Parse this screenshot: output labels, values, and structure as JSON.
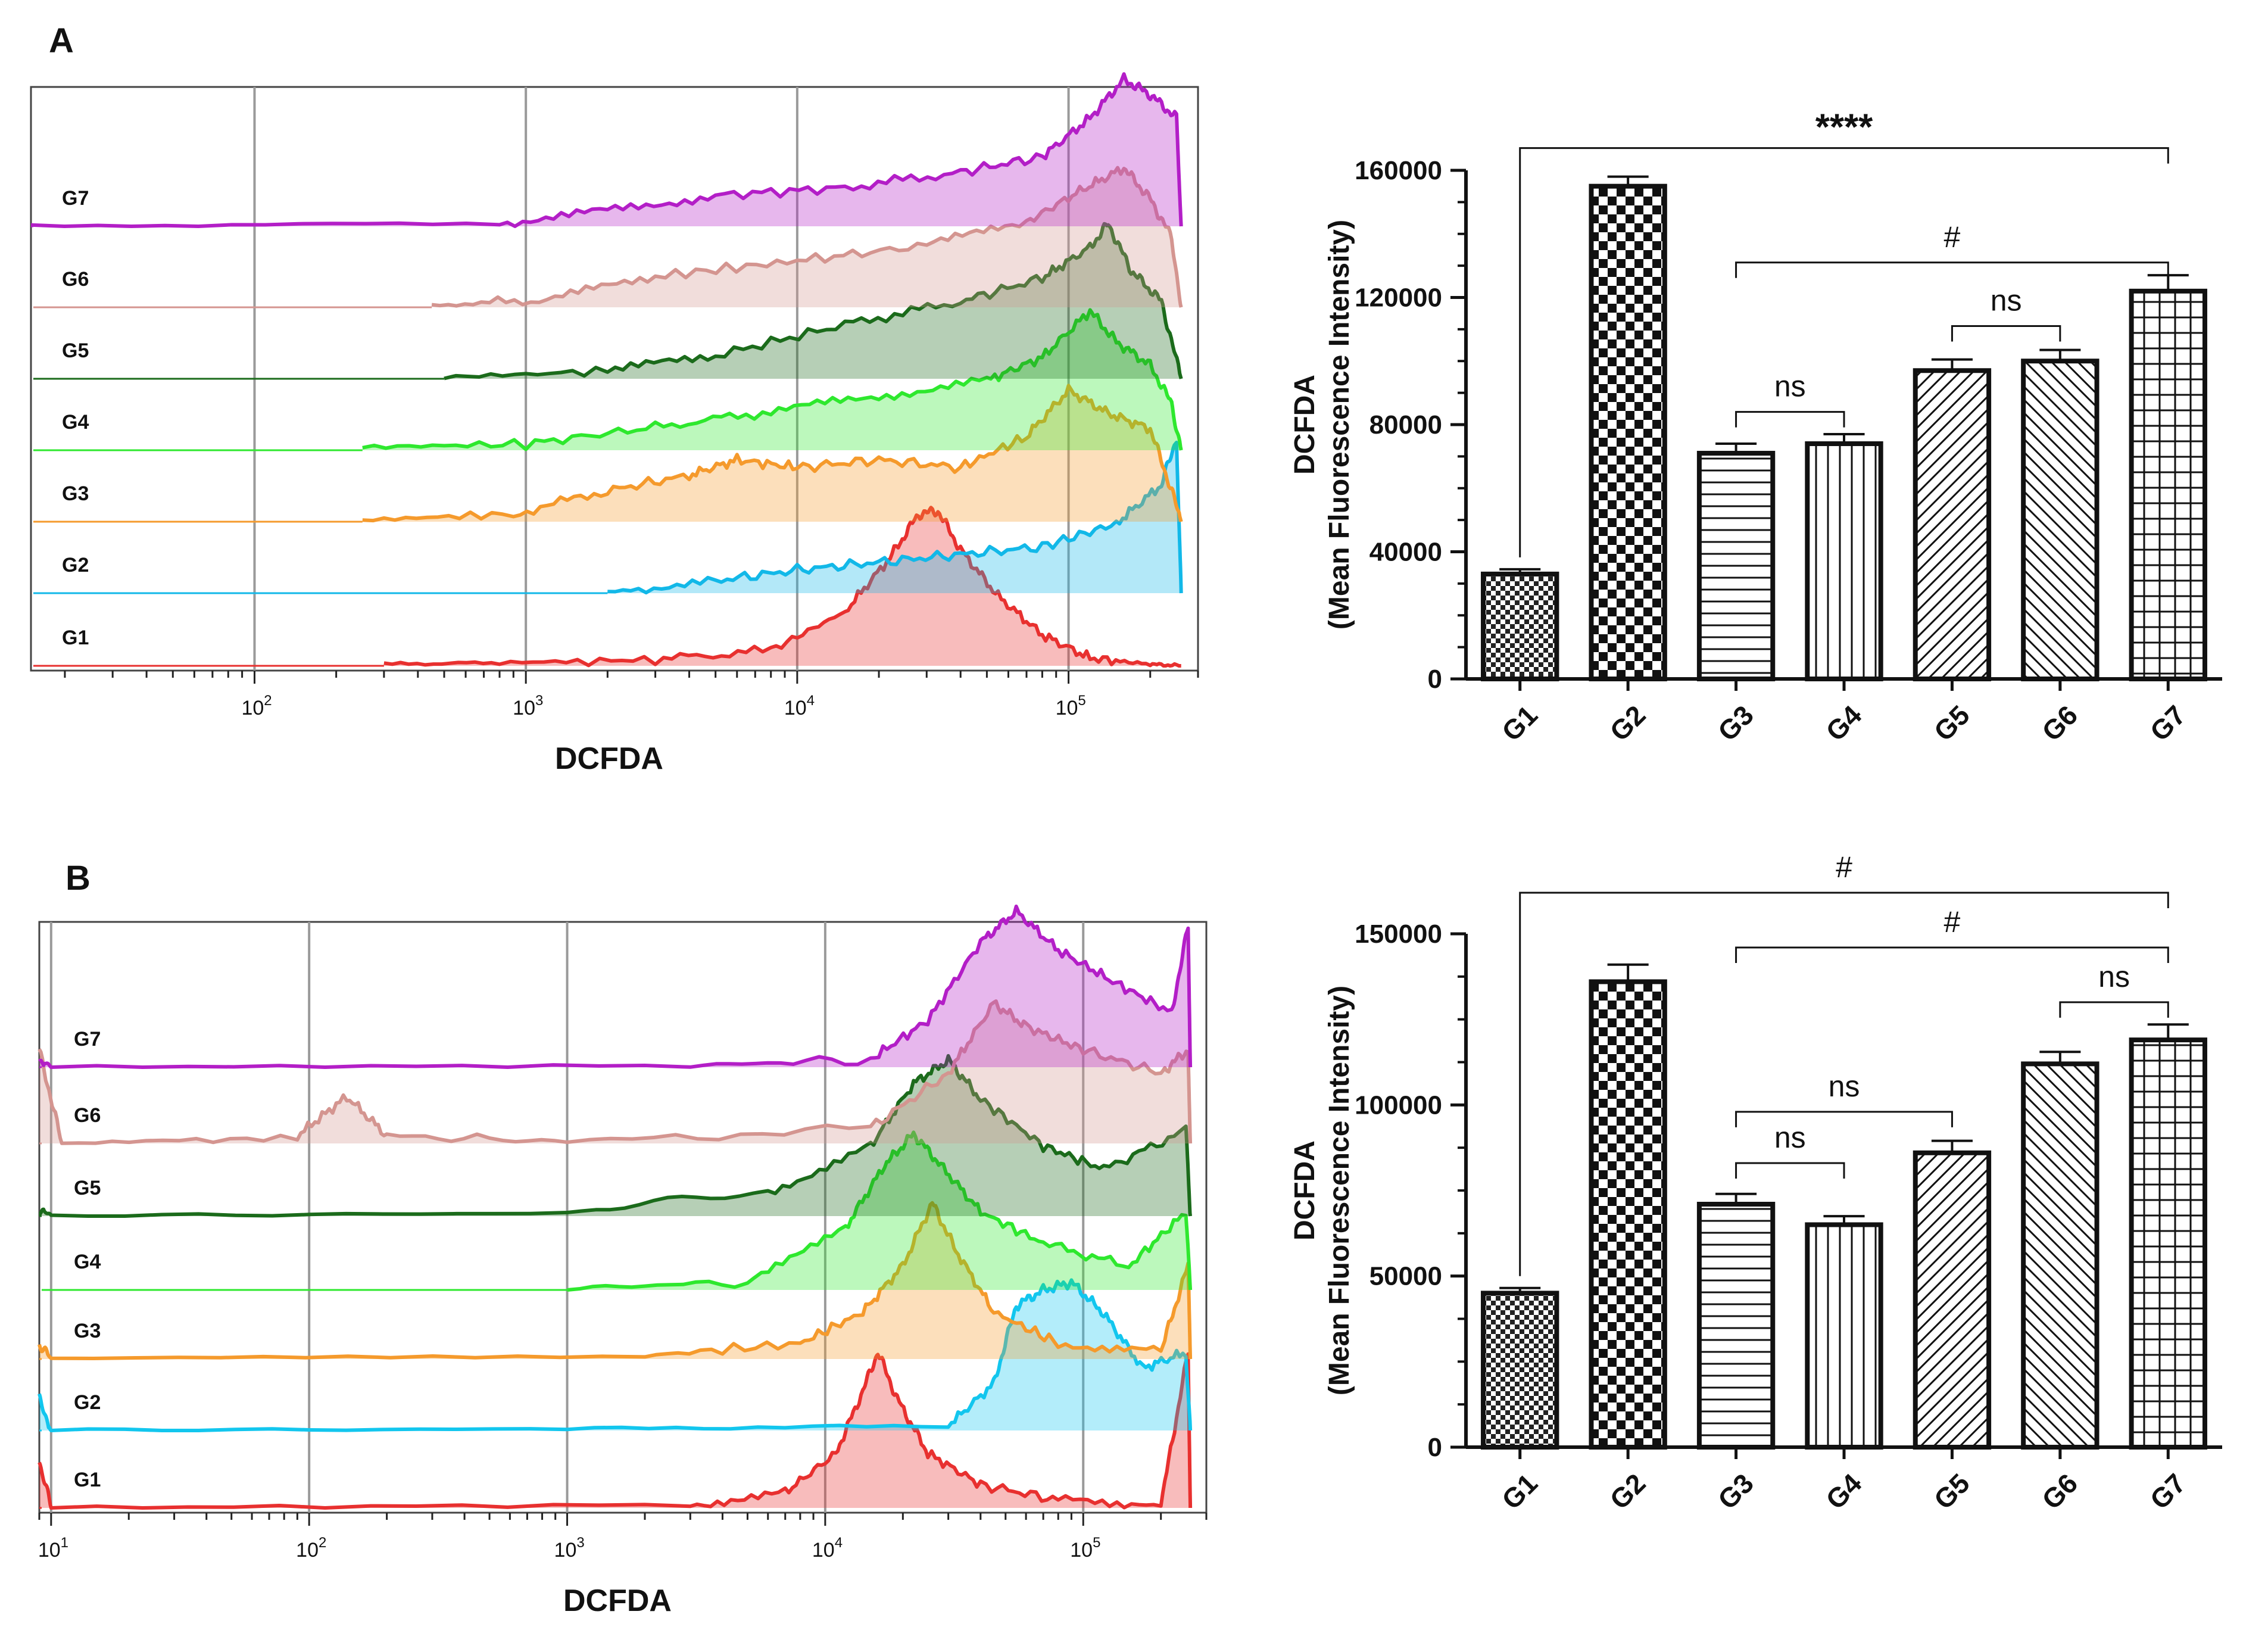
{
  "chart_data": [
    {
      "panel": "A",
      "type": "histogram-overlay",
      "xlabel": "DCFDA",
      "x_scale": "log",
      "x_ticks": [
        {
          "value": 100,
          "base": "10",
          "exp": "2"
        },
        {
          "value": 1000,
          "base": "10",
          "exp": "3"
        },
        {
          "value": 10000,
          "base": "10",
          "exp": "4"
        },
        {
          "value": 100000,
          "base": "10",
          "exp": "5"
        }
      ],
      "xlim": [
        15,
        300000
      ],
      "rows": [
        "G7",
        "G6",
        "G5",
        "G4",
        "G3",
        "G2",
        "G1"
      ],
      "colors": {
        "G1": "#e8302f",
        "G2": "#12b8e8",
        "G3": "#f59a2c",
        "G4": "#2ee82e",
        "G5": "#1b6b1b",
        "G6": "#d49590",
        "G7": "#b31ec7"
      },
      "series": [
        {
          "name": "G1",
          "profile": [
            [
              300,
              0.01
            ],
            [
              800,
              0.02
            ],
            [
              3000,
              0.04
            ],
            [
              8000,
              0.1
            ],
            [
              15000,
              0.35
            ],
            [
              22000,
              0.7
            ],
            [
              28000,
              0.98
            ],
            [
              33000,
              1.0
            ],
            [
              40000,
              0.75
            ],
            [
              55000,
              0.45
            ],
            [
              80000,
              0.2
            ],
            [
              120000,
              0.05
            ],
            [
              200000,
              0.01
            ],
            [
              260000,
              0.0
            ]
          ]
        },
        {
          "name": "G2",
          "profile": [
            [
              2000,
              0.01
            ],
            [
              5000,
              0.08
            ],
            [
              10000,
              0.15
            ],
            [
              20000,
              0.2
            ],
            [
              40000,
              0.25
            ],
            [
              80000,
              0.3
            ],
            [
              150000,
              0.45
            ],
            [
              220000,
              0.7
            ],
            [
              250000,
              1.0
            ],
            [
              260000,
              0.0
            ]
          ]
        },
        {
          "name": "G3",
          "profile": [
            [
              250,
              0.01
            ],
            [
              900,
              0.05
            ],
            [
              2000,
              0.2
            ],
            [
              4000,
              0.3
            ],
            [
              6000,
              0.4
            ],
            [
              10000,
              0.35
            ],
            [
              20000,
              0.4
            ],
            [
              40000,
              0.35
            ],
            [
              70000,
              0.55
            ],
            [
              100000,
              0.85
            ],
            [
              140000,
              0.7
            ],
            [
              200000,
              0.6
            ],
            [
              240000,
              0.2
            ],
            [
              260000,
              0.0
            ]
          ]
        },
        {
          "name": "G4",
          "profile": [
            [
              250,
              0.02
            ],
            [
              1000,
              0.04
            ],
            [
              3000,
              0.15
            ],
            [
              8000,
              0.25
            ],
            [
              20000,
              0.35
            ],
            [
              50000,
              0.45
            ],
            [
              80000,
              0.6
            ],
            [
              120000,
              0.9
            ],
            [
              150000,
              0.7
            ],
            [
              200000,
              0.55
            ],
            [
              240000,
              0.3
            ],
            [
              260000,
              0.0
            ]
          ]
        },
        {
          "name": "G5",
          "profile": [
            [
              500,
              0.01
            ],
            [
              2000,
              0.05
            ],
            [
              5000,
              0.15
            ],
            [
              15000,
              0.35
            ],
            [
              40000,
              0.5
            ],
            [
              80000,
              0.65
            ],
            [
              120000,
              0.85
            ],
            [
              140000,
              1.0
            ],
            [
              170000,
              0.7
            ],
            [
              220000,
              0.5
            ],
            [
              260000,
              0.0
            ]
          ]
        },
        {
          "name": "G6",
          "profile": [
            [
              450,
              0.01
            ],
            [
              1200,
              0.05
            ],
            [
              3000,
              0.2
            ],
            [
              10000,
              0.3
            ],
            [
              30000,
              0.4
            ],
            [
              70000,
              0.55
            ],
            [
              110000,
              0.75
            ],
            [
              160000,
              0.9
            ],
            [
              200000,
              0.7
            ],
            [
              240000,
              0.45
            ],
            [
              260000,
              0.0
            ]
          ]
        },
        {
          "name": "G7",
          "profile": [
            [
              15,
              0.0
            ],
            [
              800,
              0.02
            ],
            [
              2000,
              0.1
            ],
            [
              5000,
              0.2
            ],
            [
              15000,
              0.25
            ],
            [
              40000,
              0.35
            ],
            [
              80000,
              0.45
            ],
            [
              120000,
              0.7
            ],
            [
              160000,
              0.95
            ],
            [
              200000,
              0.85
            ],
            [
              250000,
              0.7
            ],
            [
              260000,
              0.0
            ]
          ]
        }
      ]
    },
    {
      "panel": "A",
      "type": "bar",
      "categories": [
        "G1",
        "G2",
        "G3",
        "G4",
        "G5",
        "G6",
        "G7"
      ],
      "values": [
        33000,
        155000,
        71000,
        74000,
        97000,
        100000,
        122000
      ],
      "errors": [
        1500,
        3000,
        3000,
        3000,
        3500,
        3500,
        5000
      ],
      "patterns": [
        "dense-checker",
        "checker",
        "horizontal",
        "vertical",
        "diag-right",
        "diag-left",
        "grid"
      ],
      "ylabel": [
        "DCFDA",
        "(Mean Fluorescence Intensity)"
      ],
      "ylim": [
        0,
        160000
      ],
      "ticks": [
        "0",
        "40000",
        "80000",
        "120000",
        "160000"
      ],
      "tick_values": [
        0,
        40000,
        80000,
        120000,
        160000
      ],
      "annotations": [
        {
          "label": "****",
          "from": "G1",
          "to": "G7",
          "level": 167000
        },
        {
          "label": "#",
          "from": "G3",
          "to": "G7",
          "level": 131000
        },
        {
          "label": "ns",
          "from": "G3",
          "to": "G4",
          "level": 84000
        },
        {
          "label": "ns",
          "from": "G5",
          "to": "G6",
          "level": 111000
        }
      ]
    },
    {
      "panel": "B",
      "type": "histogram-overlay",
      "xlabel": "DCFDA",
      "x_scale": "log",
      "x_ticks": [
        {
          "value": 10,
          "base": "10",
          "exp": "1"
        },
        {
          "value": 100,
          "base": "10",
          "exp": "2"
        },
        {
          "value": 1000,
          "base": "10",
          "exp": "3"
        },
        {
          "value": 10000,
          "base": "10",
          "exp": "4"
        },
        {
          "value": 100000,
          "base": "10",
          "exp": "5"
        }
      ],
      "xlim": [
        9,
        300000
      ],
      "rows": [
        "G7",
        "G6",
        "G5",
        "G4",
        "G3",
        "G2",
        "G1"
      ],
      "colors": {
        "G1": "#e8302f",
        "G2": "#12c6ee",
        "G3": "#f59a2c",
        "G4": "#2ee82e",
        "G5": "#1b6b1b",
        "G6": "#d49590",
        "G7": "#b31ec7"
      },
      "series": [
        {
          "name": "G1",
          "profile": [
            [
              9,
              0.3
            ],
            [
              10,
              0.0
            ],
            [
              3000,
              0.02
            ],
            [
              7000,
              0.1
            ],
            [
              11000,
              0.35
            ],
            [
              14000,
              0.75
            ],
            [
              16000,
              1.0
            ],
            [
              19000,
              0.7
            ],
            [
              25000,
              0.35
            ],
            [
              40000,
              0.15
            ],
            [
              80000,
              0.05
            ],
            [
              200000,
              0.02
            ],
            [
              255000,
              1.0
            ],
            [
              260000,
              0.0
            ]
          ]
        },
        {
          "name": "G2",
          "profile": [
            [
              9,
              0.2
            ],
            [
              10,
              0.0
            ],
            [
              1000,
              0.01
            ],
            [
              30000,
              0.03
            ],
            [
              45000,
              0.3
            ],
            [
              55000,
              0.8
            ],
            [
              70000,
              0.9
            ],
            [
              90000,
              0.95
            ],
            [
              120000,
              0.75
            ],
            [
              170000,
              0.4
            ],
            [
              250000,
              0.5
            ],
            [
              260000,
              0.0
            ]
          ]
        },
        {
          "name": "G3",
          "profile": [
            [
              9,
              0.1
            ],
            [
              10,
              0.0
            ],
            [
              2000,
              0.02
            ],
            [
              8000,
              0.1
            ],
            [
              14000,
              0.3
            ],
            [
              20000,
              0.6
            ],
            [
              26000,
              1.0
            ],
            [
              32000,
              0.7
            ],
            [
              45000,
              0.3
            ],
            [
              80000,
              0.1
            ],
            [
              200000,
              0.05
            ],
            [
              255000,
              0.6
            ],
            [
              260000,
              0.0
            ]
          ]
        },
        {
          "name": "G4",
          "profile": [
            [
              1000,
              0.01
            ],
            [
              5000,
              0.05
            ],
            [
              12000,
              0.4
            ],
            [
              17000,
              0.8
            ],
            [
              22000,
              1.0
            ],
            [
              28000,
              0.8
            ],
            [
              40000,
              0.5
            ],
            [
              70000,
              0.3
            ],
            [
              150000,
              0.15
            ],
            [
              250000,
              0.5
            ],
            [
              260000,
              0.0
            ]
          ]
        },
        {
          "name": "G5",
          "profile": [
            [
              9,
              0.05
            ],
            [
              10,
              0.0
            ],
            [
              1000,
              0.02
            ],
            [
              6000,
              0.15
            ],
            [
              15000,
              0.45
            ],
            [
              22000,
              0.85
            ],
            [
              30000,
              1.0
            ],
            [
              40000,
              0.75
            ],
            [
              70000,
              0.45
            ],
            [
              120000,
              0.3
            ],
            [
              250000,
              0.55
            ],
            [
              260000,
              0.0
            ]
          ]
        },
        {
          "name": "G6",
          "profile": [
            [
              9,
              0.6
            ],
            [
              11,
              0.0
            ],
            [
              90,
              0.05
            ],
            [
              140,
              0.3
            ],
            [
              200,
              0.05
            ],
            [
              1000,
              0.01
            ],
            [
              15000,
              0.1
            ],
            [
              30000,
              0.45
            ],
            [
              45000,
              0.9
            ],
            [
              60000,
              0.75
            ],
            [
              100000,
              0.6
            ],
            [
              200000,
              0.45
            ],
            [
              255000,
              0.6
            ],
            [
              260000,
              0.0
            ]
          ]
        },
        {
          "name": "G7",
          "profile": [
            [
              9,
              0.05
            ],
            [
              10,
              0.0
            ],
            [
              3000,
              0.01
            ],
            [
              15000,
              0.05
            ],
            [
              25000,
              0.3
            ],
            [
              40000,
              0.8
            ],
            [
              55000,
              1.0
            ],
            [
              80000,
              0.75
            ],
            [
              130000,
              0.55
            ],
            [
              220000,
              0.35
            ],
            [
              255000,
              0.9
            ],
            [
              260000,
              0.0
            ]
          ]
        }
      ]
    },
    {
      "panel": "B",
      "type": "bar",
      "categories": [
        "G1",
        "G2",
        "G3",
        "G4",
        "G5",
        "G6",
        "G7"
      ],
      "values": [
        45000,
        136000,
        71000,
        65000,
        86000,
        112000,
        119000
      ],
      "errors": [
        1500,
        5000,
        3000,
        2500,
        3500,
        3500,
        4500
      ],
      "patterns": [
        "dense-checker",
        "checker",
        "horizontal",
        "vertical",
        "diag-right",
        "diag-left",
        "grid"
      ],
      "ylabel": [
        "DCFDA",
        "(Mean Fluorescence Intensity)"
      ],
      "ylim": [
        0,
        150000
      ],
      "ticks": [
        "0",
        "50000",
        "100000",
        "150000"
      ],
      "tick_values": [
        0,
        50000,
        100000,
        150000
      ],
      "annotations": [
        {
          "label": "#",
          "from": "G1",
          "to": "G7",
          "level": 162000
        },
        {
          "label": "#",
          "from": "G3",
          "to": "G7",
          "level": 146000
        },
        {
          "label": "ns",
          "from": "G6",
          "to": "G7",
          "level": 130000
        },
        {
          "label": "ns",
          "from": "G3",
          "to": "G5",
          "level": 98000
        },
        {
          "label": "ns",
          "from": "G3",
          "to": "G4",
          "level": 83000
        }
      ]
    }
  ],
  "panels": {
    "a": "A",
    "b": "B"
  }
}
